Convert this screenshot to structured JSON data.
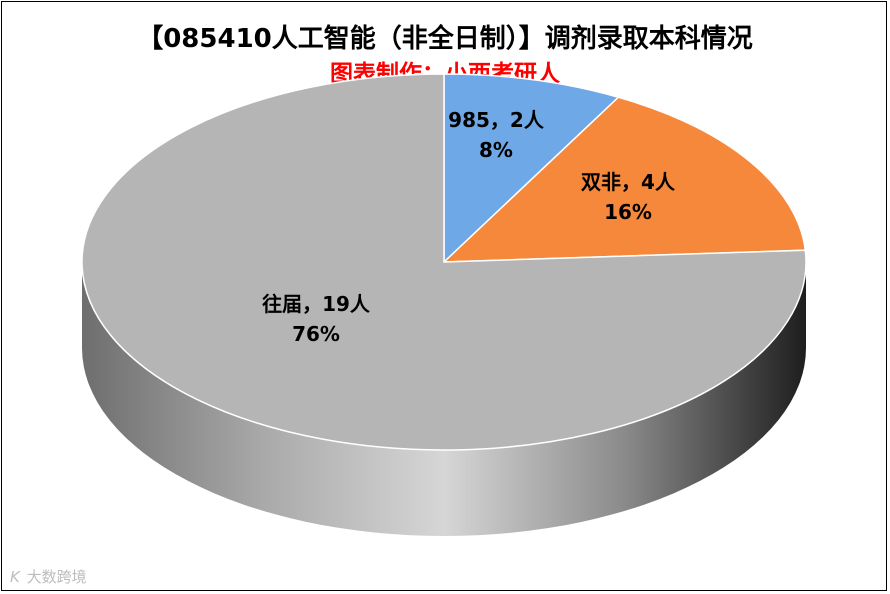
{
  "title": "【085410人工智能（非全日制）】调剂录取本科情况",
  "subtitle": "图表制作：小西考研人",
  "watermark": {
    "logo": "K",
    "text": "大数跨境"
  },
  "colors": {
    "title": "#000000",
    "subtitle": "#ff0000",
    "series": [
      "#6fa8e6",
      "#f5883a",
      "#b5b5b5"
    ]
  },
  "chart_data": {
    "type": "pie",
    "style": "3d",
    "title": "【085410人工智能（非全日制）】调剂录取本科情况",
    "subtitle": "图表制作：小西考研人",
    "slices": [
      {
        "label": "985",
        "count": 2,
        "unit": "人",
        "percent": 8,
        "color": "#6fa8e6"
      },
      {
        "label": "双非",
        "count": 4,
        "unit": "人",
        "percent": 16,
        "color": "#f5883a"
      },
      {
        "label": "往届",
        "count": 19,
        "unit": "人",
        "percent": 76,
        "color": "#b5b5b5"
      }
    ],
    "labels": [
      {
        "line1": "985，2人",
        "line2": "8%"
      },
      {
        "line1": "双非，4人",
        "line2": "16%"
      },
      {
        "line1": "往届，19人",
        "line2": "76%"
      }
    ]
  }
}
